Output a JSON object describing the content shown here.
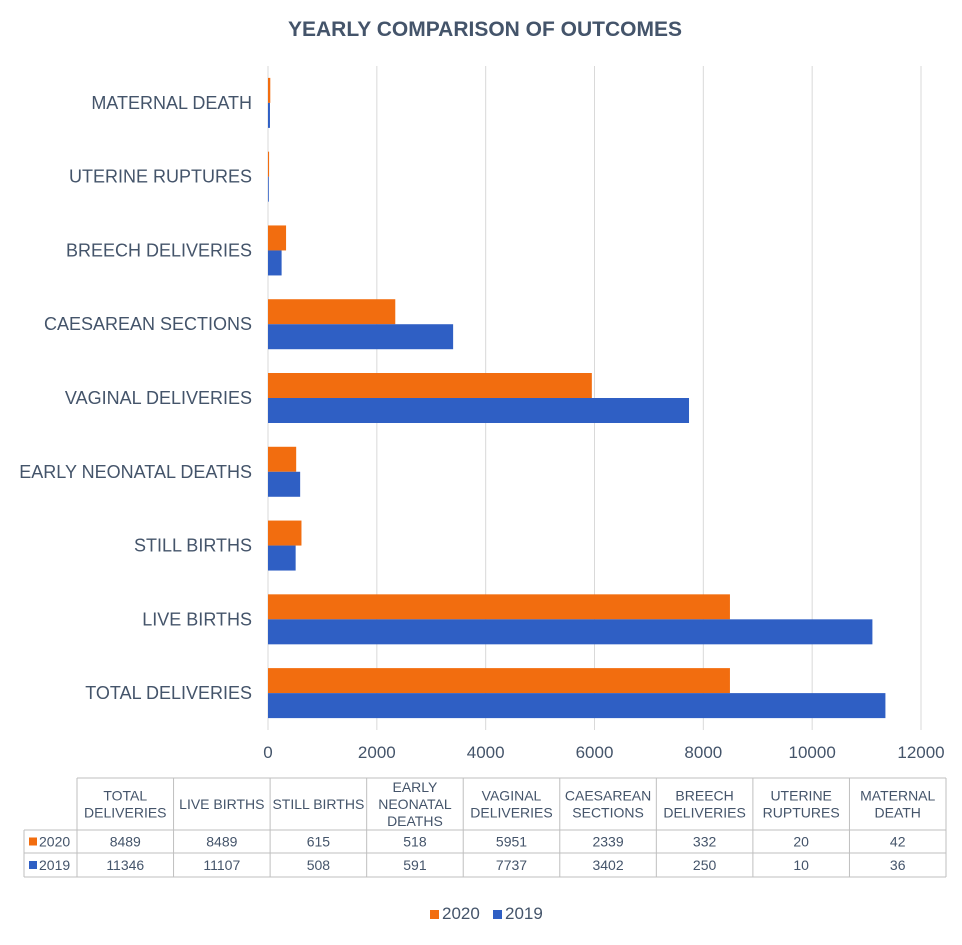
{
  "chart_data": {
    "type": "bar",
    "orientation": "horizontal",
    "title": "YEARLY COMPARISON OF OUTCOMES",
    "categories": [
      "TOTAL DELIVERIES",
      "LIVE BIRTHS",
      "STILL BIRTHS",
      "EARLY NEONATAL DEATHS",
      "VAGINAL DELIVERIES",
      "CAESAREAN SECTIONS",
      "BREECH DELIVERIES",
      "UTERINE RUPTURES",
      "MATERNAL DEATH"
    ],
    "table_headers": [
      "TOTAL DELIVERIES",
      "LIVE BIRTHS",
      "STILL BIRTHS",
      "EARLY NEONATAL DEATHS",
      "VAGINAL DELIVERIES",
      "CAESAREAN SECTIONS",
      "BREECH DELIVERIES",
      "UTERINE RUPTURES",
      "MATERNAL DEATH"
    ],
    "series": [
      {
        "name": "2020",
        "color": "#f26d0f",
        "values": [
          8489,
          8489,
          615,
          518,
          5951,
          2339,
          332,
          20,
          42
        ]
      },
      {
        "name": "2019",
        "color": "#2f5fc4",
        "values": [
          11346,
          11107,
          508,
          591,
          7737,
          3402,
          250,
          10,
          36
        ]
      }
    ],
    "xlim": [
      0,
      12000
    ],
    "xticks": [
      0,
      2000,
      4000,
      6000,
      8000,
      10000,
      12000
    ],
    "grid": true,
    "legend_position": "bottom",
    "data_table": true
  }
}
